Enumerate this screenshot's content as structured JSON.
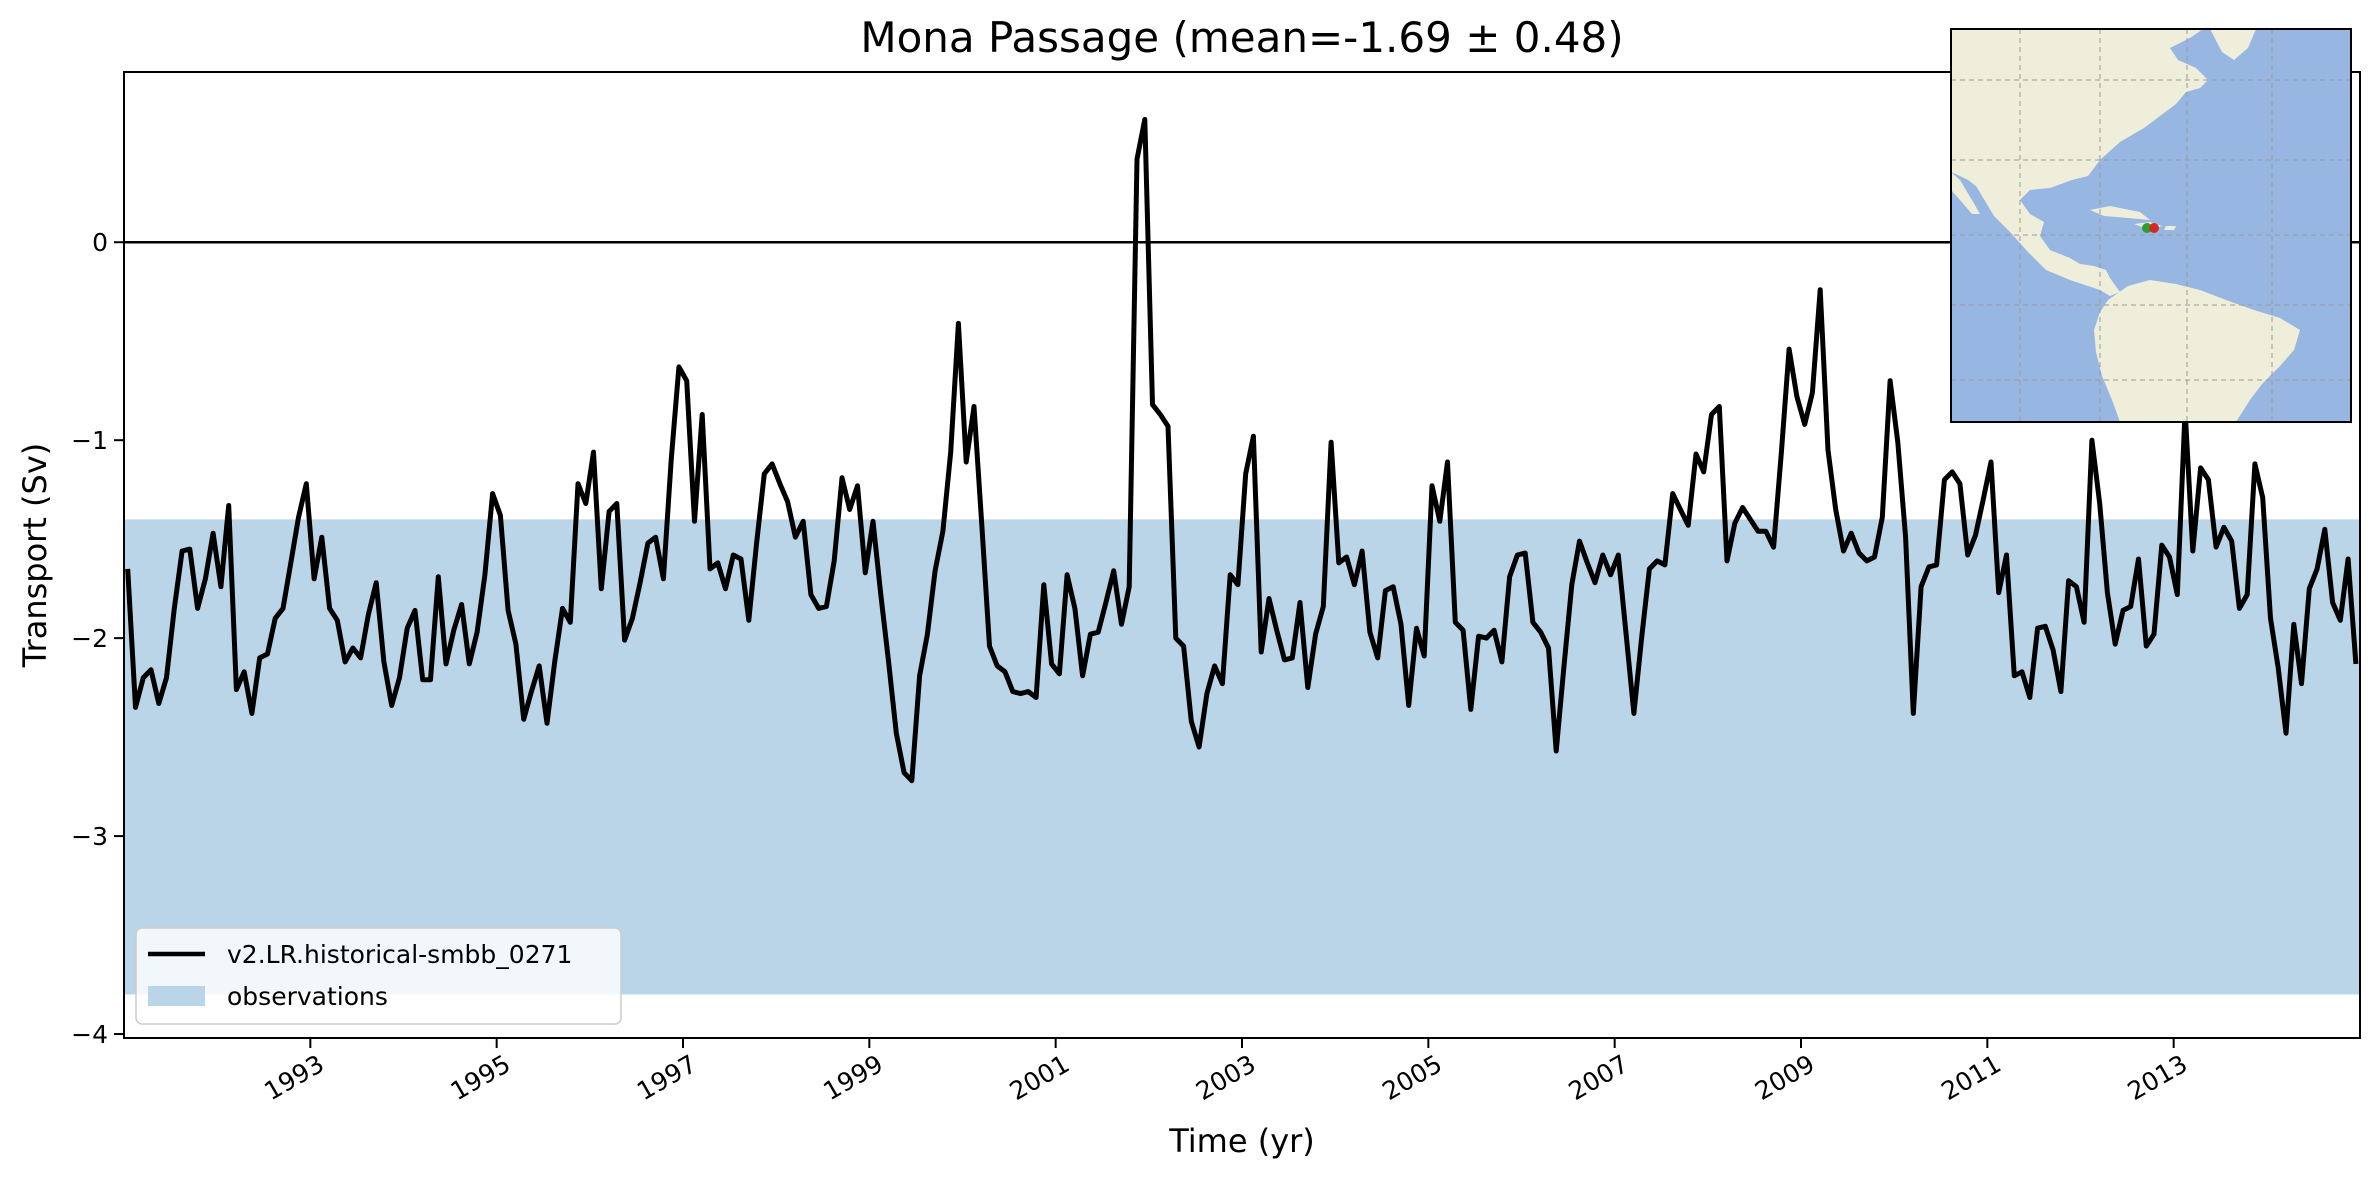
{
  "chart_data": {
    "type": "line",
    "title": "Mona Passage (mean=-1.69 ± 0.48)",
    "xlabel": "Time (yr)",
    "ylabel": "Transport (Sv)",
    "xlim": [
      1991.0,
      2015.0
    ],
    "ylim": [
      -4.02,
      0.86
    ],
    "x_ticks": [
      1993,
      1995,
      1997,
      1999,
      2001,
      2003,
      2005,
      2007,
      2009,
      2011,
      2013
    ],
    "x_tick_labels": [
      "1993",
      "1995",
      "1997",
      "1999",
      "2001",
      "2003",
      "2005",
      "2007",
      "2009",
      "2011",
      "2013"
    ],
    "y_ticks": [
      -4,
      -3,
      -2,
      -1,
      0
    ],
    "y_tick_labels": [
      "−4",
      "−3",
      "−2",
      "−1",
      "0"
    ],
    "zero_line": 0,
    "grid": false,
    "legend_position": "lower-left",
    "series": [
      {
        "name": "v2.LR.historical-smbb_0271",
        "color": "#000000",
        "x_start": 1991.04,
        "x_step": 0.08333,
        "values": [
          -1.65,
          -2.35,
          -2.2,
          -2.16,
          -2.33,
          -2.2,
          -1.85,
          -1.56,
          -1.55,
          -1.85,
          -1.7,
          -1.47,
          -1.74,
          -1.33,
          -2.26,
          -2.17,
          -2.38,
          -2.1,
          -2.08,
          -1.9,
          -1.85,
          -1.62,
          -1.39,
          -1.22,
          -1.7,
          -1.49,
          -1.85,
          -1.91,
          -2.12,
          -2.05,
          -2.1,
          -1.88,
          -1.72,
          -2.12,
          -2.34,
          -2.2,
          -1.95,
          -1.86,
          -2.21,
          -2.21,
          -1.69,
          -2.13,
          -1.96,
          -1.83,
          -2.13,
          -1.97,
          -1.68,
          -1.27,
          -1.38,
          -1.86,
          -2.03,
          -2.41,
          -2.27,
          -2.14,
          -2.43,
          -2.12,
          -1.85,
          -1.92,
          -1.22,
          -1.32,
          -1.06,
          -1.75,
          -1.36,
          -1.32,
          -2.01,
          -1.9,
          -1.72,
          -1.52,
          -1.49,
          -1.7,
          -1.1,
          -0.63,
          -0.7,
          -1.41,
          -0.87,
          -1.65,
          -1.62,
          -1.75,
          -1.58,
          -1.6,
          -1.91,
          -1.52,
          -1.17,
          -1.12,
          -1.22,
          -1.31,
          -1.49,
          -1.41,
          -1.78,
          -1.85,
          -1.84,
          -1.61,
          -1.19,
          -1.35,
          -1.23,
          -1.67,
          -1.41,
          -1.78,
          -2.12,
          -2.48,
          -2.68,
          -2.72,
          -2.19,
          -1.98,
          -1.66,
          -1.46,
          -1.06,
          -0.41,
          -1.11,
          -0.83,
          -1.42,
          -2.04,
          -2.14,
          -2.17,
          -2.27,
          -2.28,
          -2.27,
          -2.3,
          -1.73,
          -2.13,
          -2.18,
          -1.68,
          -1.85,
          -2.19,
          -1.98,
          -1.97,
          -1.82,
          -1.66,
          -1.93,
          -1.74,
          0.42,
          0.62,
          -0.82,
          -0.87,
          -0.93,
          -2.0,
          -2.04,
          -2.42,
          -2.55,
          -2.28,
          -2.14,
          -2.23,
          -1.68,
          -1.73,
          -1.17,
          -0.98,
          -2.07,
          -1.8,
          -1.96,
          -2.11,
          -2.1,
          -1.82,
          -2.25,
          -1.98,
          -1.84,
          -1.01,
          -1.62,
          -1.59,
          -1.73,
          -1.56,
          -1.97,
          -2.1,
          -1.76,
          -1.74,
          -1.93,
          -2.34,
          -1.95,
          -2.09,
          -1.23,
          -1.41,
          -1.11,
          -1.92,
          -1.96,
          -2.36,
          -1.99,
          -2.0,
          -1.96,
          -2.12,
          -1.69,
          -1.58,
          -1.57,
          -1.92,
          -1.97,
          -2.05,
          -2.57,
          -2.14,
          -1.73,
          -1.51,
          -1.62,
          -1.72,
          -1.58,
          -1.68,
          -1.58,
          -1.98,
          -2.38,
          -2.0,
          -1.65,
          -1.61,
          -1.63,
          -1.27,
          -1.35,
          -1.43,
          -1.07,
          -1.16,
          -0.87,
          -0.83,
          -1.61,
          -1.42,
          -1.34,
          -1.4,
          -1.46,
          -1.46,
          -1.54,
          -1.06,
          -0.54,
          -0.78,
          -0.92,
          -0.76,
          -0.24,
          -1.05,
          -1.35,
          -1.56,
          -1.47,
          -1.57,
          -1.61,
          -1.59,
          -1.39,
          -0.7,
          -1.01,
          -1.49,
          -2.38,
          -1.74,
          -1.64,
          -1.63,
          -1.2,
          -1.16,
          -1.22,
          -1.58,
          -1.48,
          -1.3,
          -1.11,
          -1.77,
          -1.58,
          -2.19,
          -2.17,
          -2.3,
          -1.95,
          -1.94,
          -2.06,
          -2.27,
          -1.71,
          -1.74,
          -1.92,
          -1.0,
          -1.32,
          -1.77,
          -2.03,
          -1.86,
          -1.84,
          -1.6,
          -2.04,
          -1.98,
          -1.53,
          -1.59,
          -1.78,
          -0.85,
          -1.56,
          -1.14,
          -1.2,
          -1.54,
          -1.44,
          -1.51,
          -1.85,
          -1.78,
          -1.12,
          -1.29,
          -1.9,
          -2.15,
          -2.48,
          -1.93,
          -2.23,
          -1.75,
          -1.65,
          -1.45,
          -1.82,
          -1.91,
          -1.6,
          -2.13
        ]
      }
    ],
    "bands": [
      {
        "name": "observations",
        "ymin": -3.8,
        "ymax": -1.4,
        "color": "#bad5e8"
      }
    ]
  },
  "inset_map": {
    "land_color": "#efeedb",
    "ocean_color": "#97b6e1",
    "marker_start_color": "#2ca02c",
    "marker_end_color": "#d62728"
  }
}
